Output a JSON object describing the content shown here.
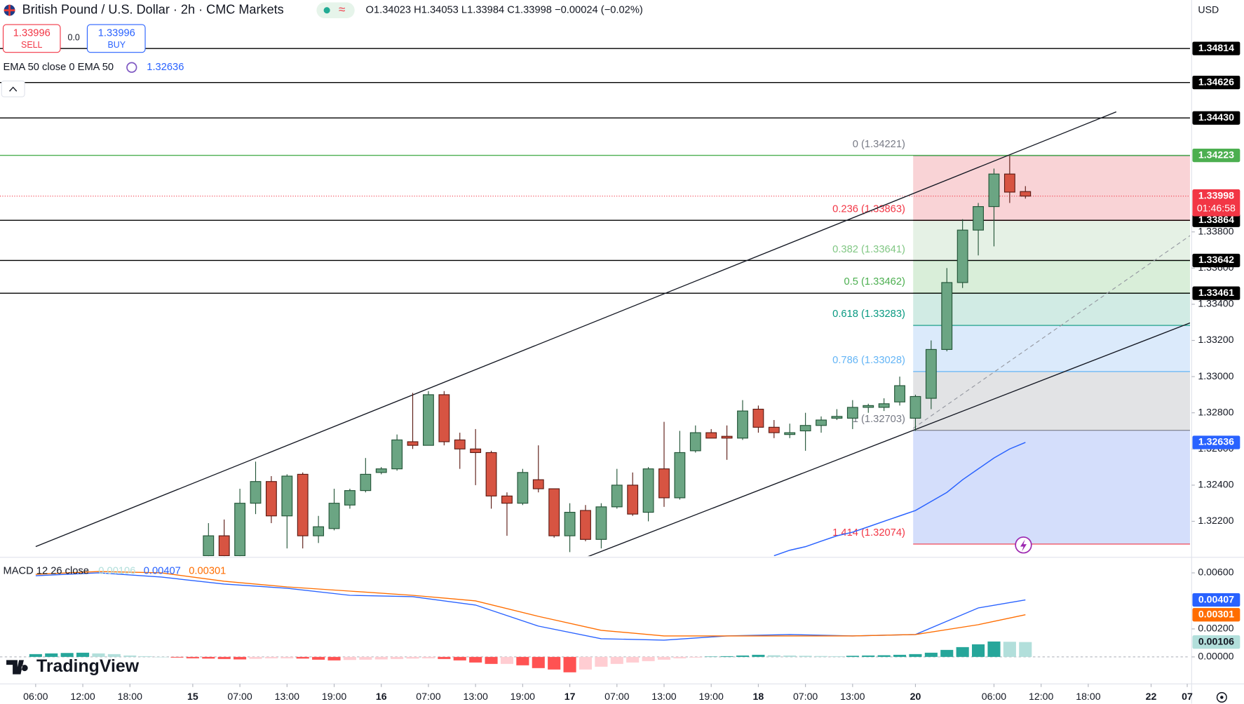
{
  "chart_data": {
    "type": "candlestick",
    "title": "British Pound / U.S. Dollar · 2h · CMC Markets",
    "status_icon": "≈",
    "ohlc_text": "O1.34023 H1.34053 L1.33984 C1.33998 −0.00024 (−0.02%)",
    "sell": {
      "price": "1.33996",
      "label": "SELL"
    },
    "spread": "0.0",
    "buy": {
      "price": "1.33996",
      "label": "BUY"
    },
    "currency": "USD",
    "countdown": "01:46:58",
    "logo": "TradingView",
    "up_color": "#6ba583",
    "down_color": "#d75442",
    "up_border": "#225437",
    "down_border": "#5b1a13",
    "x": [
      11,
      12,
      13,
      14,
      15,
      16,
      17,
      18,
      19,
      20,
      21,
      22,
      23,
      24,
      25,
      26,
      27,
      28,
      29,
      30,
      31,
      32,
      33,
      34,
      35,
      36,
      37,
      38,
      39,
      40,
      41,
      42,
      43,
      44,
      45,
      46,
      47,
      48,
      49,
      50,
      51,
      52,
      53,
      54,
      55,
      56,
      57,
      58,
      59,
      60,
      61,
      62,
      63
    ],
    "open": [
      1.3201,
      1.3212,
      1.3201,
      1.323,
      1.3242,
      1.3223,
      1.3246,
      1.3212,
      1.3216,
      1.3229,
      1.3237,
      1.3247,
      1.3249,
      1.3264,
      1.3262,
      1.329,
      1.3265,
      1.326,
      1.3258,
      1.3234,
      1.323,
      1.3243,
      1.3238,
      1.3212,
      1.3226,
      1.321,
      1.3228,
      1.324,
      1.3225,
      1.3249,
      1.3233,
      1.3259,
      1.3269,
      1.3267,
      1.3266,
      1.3282,
      1.3272,
      1.3268,
      1.327,
      1.3273,
      1.3277,
      1.3277,
      1.3283,
      1.3283,
      1.3286,
      1.3277,
      1.3288,
      1.3315,
      1.3352,
      1.3381,
      1.3394,
      1.3412,
      1.34023
    ],
    "high": [
      1.3219,
      1.3221,
      1.3238,
      1.3253,
      1.3245,
      1.3246,
      1.3247,
      1.3223,
      1.3238,
      1.3238,
      1.3255,
      1.325,
      1.3268,
      1.3291,
      1.3292,
      1.3292,
      1.3269,
      1.3271,
      1.3259,
      1.3236,
      1.3249,
      1.3262,
      1.3238,
      1.323,
      1.3229,
      1.323,
      1.3249,
      1.3247,
      1.325,
      1.3275,
      1.327,
      1.3273,
      1.3271,
      1.3273,
      1.3287,
      1.3284,
      1.3276,
      1.3274,
      1.328,
      1.3278,
      1.3282,
      1.3287,
      1.3285,
      1.3288,
      1.33,
      1.329,
      1.332,
      1.336,
      1.3387,
      1.3396,
      1.3415,
      1.3422,
      1.34053
    ],
    "low": [
      1.3199,
      1.3199,
      1.3199,
      1.3224,
      1.3219,
      1.3205,
      1.3205,
      1.3208,
      1.3215,
      1.3227,
      1.3236,
      1.3246,
      1.3248,
      1.326,
      1.3262,
      1.3262,
      1.3249,
      1.324,
      1.3227,
      1.3212,
      1.3229,
      1.3236,
      1.3211,
      1.3203,
      1.3209,
      1.3205,
      1.3227,
      1.3223,
      1.322,
      1.3228,
      1.3232,
      1.3258,
      1.3266,
      1.3254,
      1.3265,
      1.3269,
      1.3266,
      1.3266,
      1.3259,
      1.3269,
      1.3276,
      1.3271,
      1.328,
      1.3281,
      1.3284,
      1.327,
      1.3282,
      1.3314,
      1.3349,
      1.3367,
      1.3372,
      1.3396,
      1.33984
    ],
    "close": [
      1.3212,
      1.3201,
      1.323,
      1.3242,
      1.3223,
      1.3245,
      1.3212,
      1.3217,
      1.323,
      1.3237,
      1.3246,
      1.3249,
      1.3265,
      1.3262,
      1.329,
      1.3264,
      1.326,
      1.3258,
      1.3234,
      1.323,
      1.3247,
      1.3238,
      1.3212,
      1.3225,
      1.321,
      1.3228,
      1.324,
      1.3224,
      1.3249,
      1.3233,
      1.3258,
      1.3269,
      1.3266,
      1.3266,
      1.3281,
      1.3272,
      1.3269,
      1.3269,
      1.3273,
      1.3276,
      1.3278,
      1.3283,
      1.3284,
      1.3285,
      1.3295,
      1.3289,
      1.3315,
      1.3352,
      1.3381,
      1.3394,
      1.3412,
      1.3402,
      1.33998
    ],
    "xlim": [
      -2.27,
      73.48
    ],
    "xticks": [
      {
        "value": 0,
        "label": "06:00"
      },
      {
        "value": 3,
        "label": "12:00"
      },
      {
        "value": 6,
        "label": "18:00"
      },
      {
        "value": 10,
        "label": "15"
      },
      {
        "value": 13,
        "label": "07:00"
      },
      {
        "value": 16,
        "label": "13:00"
      },
      {
        "value": 19,
        "label": "19:00"
      },
      {
        "value": 22,
        "label": "16"
      },
      {
        "value": 25,
        "label": "07:00"
      },
      {
        "value": 28,
        "label": "13:00"
      },
      {
        "value": 31,
        "label": "19:00"
      },
      {
        "value": 34,
        "label": "17"
      },
      {
        "value": 37,
        "label": "07:00"
      },
      {
        "value": 40,
        "label": "13:00"
      },
      {
        "value": 43,
        "label": "19:00"
      },
      {
        "value": 46,
        "label": "18"
      },
      {
        "value": 49,
        "label": "07:00"
      },
      {
        "value": 52,
        "label": "13:00"
      },
      {
        "value": 56,
        "label": "20"
      },
      {
        "value": 61,
        "label": "06:00"
      },
      {
        "value": 64,
        "label": "12:00"
      },
      {
        "value": 67,
        "label": "18:00"
      },
      {
        "value": 71,
        "label": "22"
      },
      {
        "value": 73.3,
        "label": "07"
      }
    ],
    "ylim": [
      1.32012,
      1.35082
    ],
    "yticks": [
      {
        "value": 1.322,
        "label": "1.32200"
      },
      {
        "value": 1.324,
        "label": "1.32400"
      },
      {
        "value": 1.326,
        "label": "1.32600"
      },
      {
        "value": 1.328,
        "label": "1.32800"
      },
      {
        "value": 1.33,
        "label": "1.33000"
      },
      {
        "value": 1.332,
        "label": "1.33200"
      },
      {
        "value": 1.334,
        "label": "1.33400"
      },
      {
        "value": 1.336,
        "label": "1.33600"
      },
      {
        "value": 1.338,
        "label": "1.33800"
      }
    ],
    "grid": false,
    "ema": {
      "name": "EMA 50 close 0 EMA 50",
      "color": "#2962ff",
      "values": [
        null,
        null,
        null,
        null,
        null,
        null,
        null,
        null,
        null,
        null,
        null,
        null,
        null,
        null,
        null,
        null,
        null,
        null,
        null,
        null,
        null,
        null,
        null,
        null,
        null,
        null,
        null,
        null,
        null,
        null,
        null,
        null,
        null,
        null,
        null,
        null,
        1.3201,
        1.3204,
        1.3206,
        1.3209,
        1.3212,
        1.3214,
        1.3217,
        1.322,
        1.3223,
        1.3226,
        1.3231,
        1.3236,
        1.3243,
        1.3249,
        1.3255,
        1.326,
        1.32636
      ]
    },
    "levels": [
      {
        "value": 1.34814,
        "color": "#000000"
      },
      {
        "value": 1.34626,
        "color": "#000000"
      },
      {
        "value": 1.3443,
        "label": "1.34430",
        "color": "#000000"
      },
      {
        "value": 1.34223,
        "color": "#4caf50"
      },
      {
        "value": 1.33864,
        "color": "#000000"
      },
      {
        "value": 1.33642,
        "color": "#000000"
      },
      {
        "value": 1.33461,
        "color": "#000000"
      }
    ],
    "last_color": "#f23645",
    "fib": {
      "prices": [
        1.34221,
        1.33863,
        1.33641,
        1.33462,
        1.33283,
        1.33028,
        1.32703,
        1.32074
      ],
      "labels": [
        "0 (1.34221)",
        "0.236 (1.33863)",
        "0.382 (1.33641)",
        "0.5 (1.33462)",
        "0.618 (1.33283)",
        "0.786 (1.33028)",
        "1 (1.32703)",
        "1.414 (1.32074)"
      ],
      "colors": [
        "#787b86",
        "#f23645",
        "#81c784",
        "#4caf50",
        "#089981",
        "#64b5f6",
        "#787b86",
        "#f23645"
      ],
      "fills": [
        "#f9d3d6",
        "#e5f1e5",
        "#d9eed9",
        "#d1ebe4",
        "#dbeafb",
        "#e2e3e5",
        "#d4defb"
      ]
    },
    "macd": {
      "name": "MACD 12 26 close",
      "x": [
        0,
        1,
        2,
        3,
        4,
        5,
        6,
        7,
        8,
        9,
        10,
        11,
        12,
        13,
        14,
        15,
        16,
        17,
        18,
        19,
        20,
        21,
        22,
        23,
        24,
        25,
        26,
        27,
        28,
        29,
        30,
        31,
        32,
        33,
        34,
        35,
        36,
        37,
        38,
        39,
        40,
        41,
        42,
        43,
        44,
        45,
        46,
        47,
        48,
        49,
        50,
        51,
        52,
        53,
        54,
        55,
        56,
        57,
        58,
        59,
        60,
        61,
        62,
        63
      ],
      "histogram": [
        0.0002,
        0.00025,
        0.00028,
        0.0003,
        0.00025,
        0.0002,
        0.0001,
        5e-05,
        0,
        -5e-05,
        -0.0001,
        -0.00012,
        -0.00015,
        -0.00018,
        -0.00014,
        -0.0001,
        -0.0001,
        -0.00012,
        -0.0002,
        -0.00025,
        -0.00022,
        -0.0002,
        -0.00018,
        -0.00015,
        -0.00012,
        -0.0001,
        -0.00015,
        -0.00025,
        -0.0004,
        -0.0005,
        -0.0005,
        -0.0006,
        -0.0008,
        -0.0009,
        -0.0011,
        -0.0009,
        -0.0007,
        -0.0005,
        -0.0004,
        -0.0003,
        -0.0002,
        -0.0001,
        -5e-05,
        2e-05,
        5e-05,
        0.0001,
        0.00015,
        0.00012,
        0.0001,
        8e-05,
        6e-05,
        5e-05,
        8e-05,
        0.0001,
        0.00012,
        0.00015,
        0.0002,
        0.0003,
        0.0005,
        0.0007,
        0.0009,
        0.0011,
        0.00108,
        0.00106
      ],
      "hist_colors": [
        "#26a69a",
        "#b2dfdb",
        "#ffcdd2",
        "#ff5252"
      ],
      "line_x": [
        0,
        4,
        8,
        12,
        16,
        20,
        24,
        28,
        32,
        36,
        40,
        44,
        48,
        52,
        56,
        60,
        63
      ],
      "macd": [
        0.0058,
        0.006,
        0.0057,
        0.0052,
        0.0049,
        0.0044,
        0.0043,
        0.0037,
        0.0022,
        0.0013,
        0.0012,
        0.0015,
        0.0016,
        0.0015,
        0.0016,
        0.0035,
        0.00407
      ],
      "signal": [
        0.0059,
        0.0061,
        0.006,
        0.0054,
        0.005,
        0.0047,
        0.0044,
        0.004,
        0.0029,
        0.0019,
        0.0015,
        0.0015,
        0.0015,
        0.0015,
        0.0016,
        0.0023,
        0.00301
      ],
      "macd_color": "#2962ff",
      "signal_color": "#ff6d00",
      "ylim": [
        -0.00181,
        0.00697
      ],
      "yticks": [
        {
          "value": 0.006,
          "label": "0.00600"
        },
        {
          "value": 0.002,
          "label": "0.00200"
        },
        {
          "value": 0,
          "label": "0.00000"
        }
      ]
    }
  }
}
